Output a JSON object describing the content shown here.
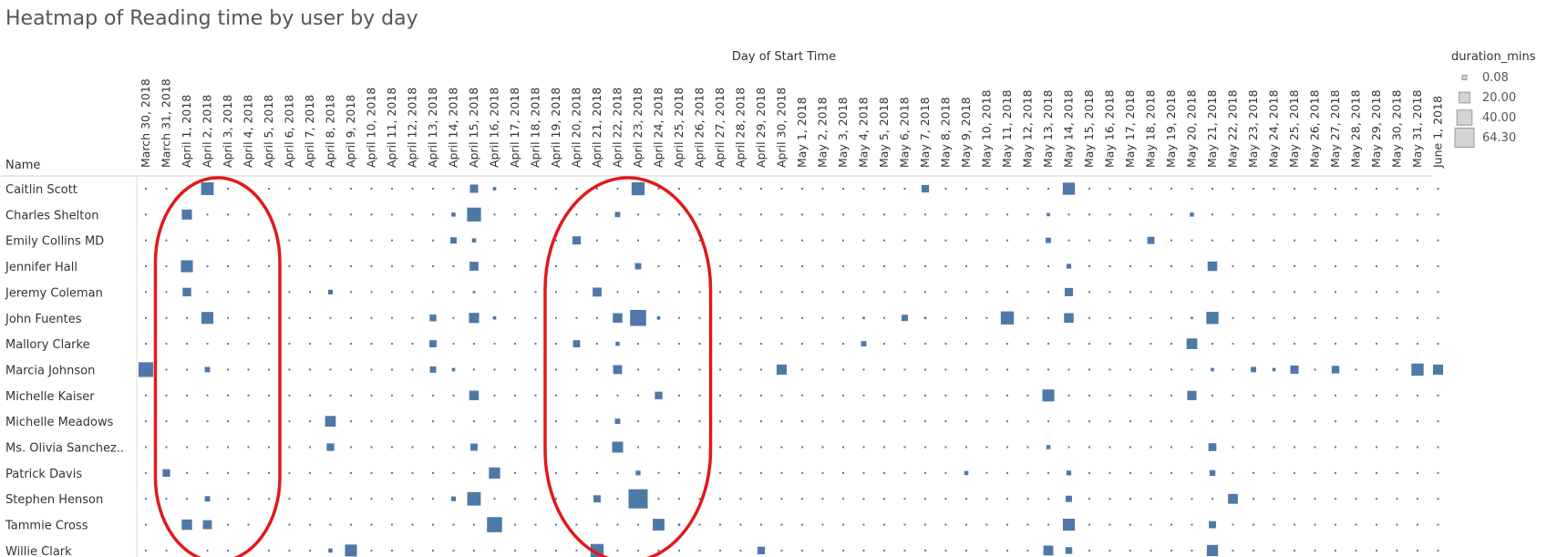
{
  "page": {
    "title": "Heatmap of Reading time by user by day"
  },
  "chart_data": {
    "type": "heatmap",
    "title": "Heatmap of Reading time by user by day",
    "x_axis_title": "Day of Start Time",
    "row_header": "Name",
    "days": [
      "March 30, 2018",
      "March 31, 2018",
      "April 1, 2018",
      "April 2, 2018",
      "April 3, 2018",
      "April 4, 2018",
      "April 5, 2018",
      "April 6, 2018",
      "April 7, 2018",
      "April 8, 2018",
      "April 9, 2018",
      "April 10, 2018",
      "April 11, 2018",
      "April 12, 2018",
      "April 13, 2018",
      "April 14, 2018",
      "April 15, 2018",
      "April 16, 2018",
      "April 17, 2018",
      "April 18, 2018",
      "April 19, 2018",
      "April 20, 2018",
      "April 21, 2018",
      "April 22, 2018",
      "April 23, 2018",
      "April 24, 2018",
      "April 25, 2018",
      "April 26, 2018",
      "April 27, 2018",
      "April 28, 2018",
      "April 29, 2018",
      "April 30, 2018",
      "May 1, 2018",
      "May 2, 2018",
      "May 3, 2018",
      "May 4, 2018",
      "May 5, 2018",
      "May 6, 2018",
      "May 7, 2018",
      "May 8, 2018",
      "May 9, 2018",
      "May 10, 2018",
      "May 11, 2018",
      "May 12, 2018",
      "May 13, 2018",
      "May 14, 2018",
      "May 15, 2018",
      "May 16, 2018",
      "May 17, 2018",
      "May 18, 2018",
      "May 19, 2018",
      "May 20, 2018",
      "May 21, 2018",
      "May 22, 2018",
      "May 23, 2018",
      "May 24, 2018",
      "May 25, 2018",
      "May 26, 2018",
      "May 27, 2018",
      "May 28, 2018",
      "May 29, 2018",
      "May 30, 2018",
      "May 31, 2018",
      "June 1, 2018"
    ],
    "names": [
      "Caitlin Scott",
      "Charles Shelton",
      "Emily Collins MD",
      "Jennifer Hall",
      "Jeremy Coleman",
      "John Fuentes",
      "Mallory Clarke",
      "Marcia Johnson",
      "Michelle Kaiser",
      "Michelle Meadows",
      "Ms. Olivia Sanchez..",
      "Patrick Davis",
      "Stephen Henson",
      "Tammie Cross",
      "Willie Clark"
    ],
    "empty_value": 0.08,
    "values": [
      {
        "name": "Caitlin Scott",
        "day": "April 2, 2018",
        "duration_mins": 28
      },
      {
        "name": "Caitlin Scott",
        "day": "April 15, 2018",
        "duration_mins": 12
      },
      {
        "name": "Caitlin Scott",
        "day": "April 16, 2018",
        "duration_mins": 2
      },
      {
        "name": "Caitlin Scott",
        "day": "April 23, 2018",
        "duration_mins": 30
      },
      {
        "name": "Caitlin Scott",
        "day": "May 7, 2018",
        "duration_mins": 10
      },
      {
        "name": "Caitlin Scott",
        "day": "May 14, 2018",
        "duration_mins": 26
      },
      {
        "name": "Charles Shelton",
        "day": "April 1, 2018",
        "duration_mins": 18
      },
      {
        "name": "Charles Shelton",
        "day": "April 14, 2018",
        "duration_mins": 3
      },
      {
        "name": "Charles Shelton",
        "day": "April 15, 2018",
        "duration_mins": 34
      },
      {
        "name": "Charles Shelton",
        "day": "April 22, 2018",
        "duration_mins": 5
      },
      {
        "name": "Charles Shelton",
        "day": "May 13, 2018",
        "duration_mins": 2
      },
      {
        "name": "Charles Shelton",
        "day": "May 20, 2018",
        "duration_mins": 3
      },
      {
        "name": "Emily Collins MD",
        "day": "April 14, 2018",
        "duration_mins": 7
      },
      {
        "name": "Emily Collins MD",
        "day": "April 15, 2018",
        "duration_mins": 3
      },
      {
        "name": "Emily Collins MD",
        "day": "April 20, 2018",
        "duration_mins": 12
      },
      {
        "name": "Emily Collins MD",
        "day": "May 13, 2018",
        "duration_mins": 5
      },
      {
        "name": "Emily Collins MD",
        "day": "May 18, 2018",
        "duration_mins": 9
      },
      {
        "name": "Jennifer Hall",
        "day": "April 1, 2018",
        "duration_mins": 25
      },
      {
        "name": "Jennifer Hall",
        "day": "April 15, 2018",
        "duration_mins": 14
      },
      {
        "name": "Jennifer Hall",
        "day": "April 23, 2018",
        "duration_mins": 7
      },
      {
        "name": "Jennifer Hall",
        "day": "May 14, 2018",
        "duration_mins": 4
      },
      {
        "name": "Jennifer Hall",
        "day": "May 21, 2018",
        "duration_mins": 16
      },
      {
        "name": "Jeremy Coleman",
        "day": "April 1, 2018",
        "duration_mins": 13
      },
      {
        "name": "Jeremy Coleman",
        "day": "April 8, 2018",
        "duration_mins": 4
      },
      {
        "name": "Jeremy Coleman",
        "day": "April 15, 2018",
        "duration_mins": 1
      },
      {
        "name": "Jeremy Coleman",
        "day": "April 21, 2018",
        "duration_mins": 14
      },
      {
        "name": "Jeremy Coleman",
        "day": "May 14, 2018",
        "duration_mins": 12
      },
      {
        "name": "John Fuentes",
        "day": "April 2, 2018",
        "duration_mins": 25
      },
      {
        "name": "John Fuentes",
        "day": "April 13, 2018",
        "duration_mins": 8
      },
      {
        "name": "John Fuentes",
        "day": "April 15, 2018",
        "duration_mins": 18
      },
      {
        "name": "John Fuentes",
        "day": "April 16, 2018",
        "duration_mins": 2
      },
      {
        "name": "John Fuentes",
        "day": "April 22, 2018",
        "duration_mins": 16
      },
      {
        "name": "John Fuentes",
        "day": "April 23, 2018",
        "duration_mins": 45
      },
      {
        "name": "John Fuentes",
        "day": "April 24, 2018",
        "duration_mins": 2
      },
      {
        "name": "John Fuentes",
        "day": "May 4, 2018",
        "duration_mins": 1
      },
      {
        "name": "John Fuentes",
        "day": "May 6, 2018",
        "duration_mins": 7
      },
      {
        "name": "John Fuentes",
        "day": "May 7, 2018",
        "duration_mins": 1
      },
      {
        "name": "John Fuentes",
        "day": "May 11, 2018",
        "duration_mins": 30
      },
      {
        "name": "John Fuentes",
        "day": "May 14, 2018",
        "duration_mins": 16
      },
      {
        "name": "John Fuentes",
        "day": "May 20, 2018",
        "duration_mins": 1
      },
      {
        "name": "John Fuentes",
        "day": "May 21, 2018",
        "duration_mins": 26
      },
      {
        "name": "Mallory Clarke",
        "day": "April 13, 2018",
        "duration_mins": 9
      },
      {
        "name": "Mallory Clarke",
        "day": "April 20, 2018",
        "duration_mins": 9
      },
      {
        "name": "Mallory Clarke",
        "day": "April 22, 2018",
        "duration_mins": 3
      },
      {
        "name": "Mallory Clarke",
        "day": "May 4, 2018",
        "duration_mins": 5
      },
      {
        "name": "Mallory Clarke",
        "day": "May 20, 2018",
        "duration_mins": 20
      },
      {
        "name": "Marcia Johnson",
        "day": "March 30, 2018",
        "duration_mins": 38
      },
      {
        "name": "Marcia Johnson",
        "day": "April 2, 2018",
        "duration_mins": 5
      },
      {
        "name": "Marcia Johnson",
        "day": "April 13, 2018",
        "duration_mins": 7
      },
      {
        "name": "Marcia Johnson",
        "day": "April 14, 2018",
        "duration_mins": 2
      },
      {
        "name": "Marcia Johnson",
        "day": "April 22, 2018",
        "duration_mins": 14
      },
      {
        "name": "Marcia Johnson",
        "day": "April 30, 2018",
        "duration_mins": 18
      },
      {
        "name": "Marcia Johnson",
        "day": "May 21, 2018",
        "duration_mins": 2
      },
      {
        "name": "Marcia Johnson",
        "day": "May 23, 2018",
        "duration_mins": 5
      },
      {
        "name": "Marcia Johnson",
        "day": "May 24, 2018",
        "duration_mins": 2
      },
      {
        "name": "Marcia Johnson",
        "day": "May 25, 2018",
        "duration_mins": 12
      },
      {
        "name": "Marcia Johnson",
        "day": "May 27, 2018",
        "duration_mins": 10
      },
      {
        "name": "Marcia Johnson",
        "day": "May 31, 2018",
        "duration_mins": 26
      },
      {
        "name": "Marcia Johnson",
        "day": "June 1, 2018",
        "duration_mins": 18
      },
      {
        "name": "Michelle Kaiser",
        "day": "April 15, 2018",
        "duration_mins": 16
      },
      {
        "name": "Michelle Kaiser",
        "day": "April 24, 2018",
        "duration_mins": 10
      },
      {
        "name": "Michelle Kaiser",
        "day": "May 13, 2018",
        "duration_mins": 25
      },
      {
        "name": "Michelle Kaiser",
        "day": "May 20, 2018",
        "duration_mins": 15
      },
      {
        "name": "Michelle Meadows",
        "day": "April 8, 2018",
        "duration_mins": 20
      },
      {
        "name": "Michelle Meadows",
        "day": "April 22, 2018",
        "duration_mins": 5
      },
      {
        "name": "Ms. Olivia Sanchez..",
        "day": "April 8, 2018",
        "duration_mins": 10
      },
      {
        "name": "Ms. Olivia Sanchez..",
        "day": "April 15, 2018",
        "duration_mins": 9
      },
      {
        "name": "Ms. Olivia Sanchez..",
        "day": "April 22, 2018",
        "duration_mins": 21
      },
      {
        "name": "Ms. Olivia Sanchez..",
        "day": "May 13, 2018",
        "duration_mins": 3
      },
      {
        "name": "Ms. Olivia Sanchez..",
        "day": "May 21, 2018",
        "duration_mins": 11
      },
      {
        "name": "Patrick Davis",
        "day": "March 31, 2018",
        "duration_mins": 10
      },
      {
        "name": "Patrick Davis",
        "day": "April 16, 2018",
        "duration_mins": 22
      },
      {
        "name": "Patrick Davis",
        "day": "April 23, 2018",
        "duration_mins": 4
      },
      {
        "name": "Patrick Davis",
        "day": "May 9, 2018",
        "duration_mins": 3
      },
      {
        "name": "Patrick Davis",
        "day": "May 14, 2018",
        "duration_mins": 4
      },
      {
        "name": "Patrick Davis",
        "day": "May 21, 2018",
        "duration_mins": 6
      },
      {
        "name": "Stephen Henson",
        "day": "April 2, 2018",
        "duration_mins": 5
      },
      {
        "name": "Stephen Henson",
        "day": "April 14, 2018",
        "duration_mins": 4
      },
      {
        "name": "Stephen Henson",
        "day": "April 15, 2018",
        "duration_mins": 32
      },
      {
        "name": "Stephen Henson",
        "day": "April 21, 2018",
        "duration_mins": 9
      },
      {
        "name": "Stephen Henson",
        "day": "April 23, 2018",
        "duration_mins": 64.3
      },
      {
        "name": "Stephen Henson",
        "day": "May 14, 2018",
        "duration_mins": 7
      },
      {
        "name": "Stephen Henson",
        "day": "May 22, 2018",
        "duration_mins": 17
      },
      {
        "name": "Tammie Cross",
        "day": "April 1, 2018",
        "duration_mins": 19
      },
      {
        "name": "Tammie Cross",
        "day": "April 2, 2018",
        "duration_mins": 14
      },
      {
        "name": "Tammie Cross",
        "day": "April 16, 2018",
        "duration_mins": 40
      },
      {
        "name": "Tammie Cross",
        "day": "April 24, 2018",
        "duration_mins": 24
      },
      {
        "name": "Tammie Cross",
        "day": "April 25, 2018",
        "duration_mins": 1
      },
      {
        "name": "Tammie Cross",
        "day": "May 14, 2018",
        "duration_mins": 25
      },
      {
        "name": "Tammie Cross",
        "day": "May 21, 2018",
        "duration_mins": 9
      },
      {
        "name": "Willie Clark",
        "day": "April 8, 2018",
        "duration_mins": 3
      },
      {
        "name": "Willie Clark",
        "day": "April 9, 2018",
        "duration_mins": 25
      },
      {
        "name": "Willie Clark",
        "day": "April 21, 2018",
        "duration_mins": 30
      },
      {
        "name": "Willie Clark",
        "day": "April 29, 2018",
        "duration_mins": 10
      },
      {
        "name": "Willie Clark",
        "day": "May 13, 2018",
        "duration_mins": 17
      },
      {
        "name": "Willie Clark",
        "day": "May 14, 2018",
        "duration_mins": 8
      },
      {
        "name": "Willie Clark",
        "day": "May 21, 2018",
        "duration_mins": 22
      }
    ],
    "legend": {
      "title": "duration_mins",
      "placement": "top-right",
      "entries": [
        {
          "value": 0.08,
          "label": "0.08"
        },
        {
          "value": 20,
          "label": "20.00"
        },
        {
          "value": 40,
          "label": "40.00"
        },
        {
          "value": 64.3,
          "label": "64.30"
        }
      ]
    },
    "mark_color": "#4e79a7",
    "annotation_color": "#e3181c",
    "annotations": [
      {
        "shape": "ellipse",
        "from_day": "March 31, 2018",
        "to_day": "April 5, 2018"
      },
      {
        "shape": "ellipse",
        "from_day": "April 19, 2018",
        "to_day": "April 26, 2018"
      }
    ]
  }
}
